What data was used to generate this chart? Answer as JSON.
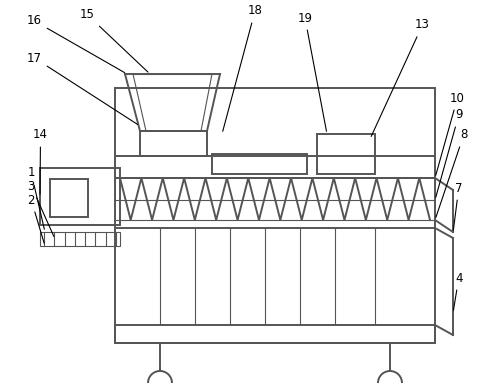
{
  "bg_color": "#ffffff",
  "line_color": "#555555",
  "line_width": 1.4,
  "thin_line": 0.8,
  "fig_width": 4.91,
  "fig_height": 3.83,
  "dpi": 100
}
